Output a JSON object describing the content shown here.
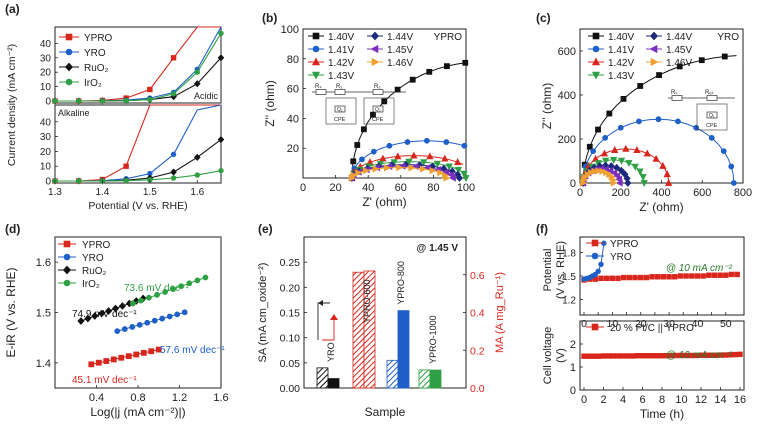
{
  "figure": {
    "panel_labels": [
      "(a)",
      "(b)",
      "(c)",
      "(d)",
      "(e)",
      "(f)"
    ]
  },
  "colors": {
    "red": "#d9261c",
    "blue": "#1f5fc8",
    "black": "#111111",
    "green": "#2ea043",
    "purple": "#7b2fbe",
    "orange": "#f0a030",
    "navy": "#1b2a7a",
    "teal": "#1a9a7a"
  },
  "chart_data": [
    {
      "id": "a_top",
      "type": "line",
      "panel": "(a)",
      "ylabel": "Current density (mA cm⁻²)",
      "annotation": "Acidic",
      "x": [
        1.3,
        1.35,
        1.4,
        1.45,
        1.5,
        1.55,
        1.6,
        1.65
      ],
      "xlim": [
        1.3,
        1.65
      ],
      "ylim": [
        0,
        50
      ],
      "yticks": [
        0,
        10,
        20,
        30,
        40
      ],
      "legend": [
        "YPRO",
        "YRO",
        "RuO₂",
        "IrO₂"
      ],
      "series": [
        {
          "name": "YPRO",
          "color": "red",
          "marker": "square",
          "values": [
            0,
            0,
            0.4,
            2,
            8,
            30,
            50,
            50
          ]
        },
        {
          "name": "YRO",
          "color": "blue",
          "marker": "circle",
          "values": [
            0,
            0,
            0.1,
            0.6,
            2,
            6,
            22,
            50
          ]
        },
        {
          "name": "RuO₂",
          "color": "black",
          "marker": "diamond",
          "values": [
            0,
            0,
            0,
            0.3,
            1,
            3,
            12,
            30
          ]
        },
        {
          "name": "IrO₂",
          "color": "green",
          "marker": "circle",
          "values": [
            0,
            0,
            0,
            0.2,
            1,
            5,
            20,
            47
          ]
        }
      ]
    },
    {
      "id": "a_bottom",
      "type": "line",
      "panel": "(a)",
      "annotation": "Alkaline",
      "x": [
        1.3,
        1.35,
        1.4,
        1.45,
        1.5,
        1.55,
        1.6,
        1.65
      ],
      "xlim": [
        1.3,
        1.65
      ],
      "ylim": [
        0,
        50
      ],
      "yticks": [
        0,
        10,
        20,
        30,
        40
      ],
      "xticks": [
        "1.3",
        "1.4",
        "1.5",
        "1.6"
      ],
      "xlabel": "Potential (V vs. RHE)",
      "series": [
        {
          "name": "YPRO",
          "color": "red",
          "marker": "square",
          "values": [
            0,
            0,
            1,
            10,
            50,
            50,
            50,
            50
          ]
        },
        {
          "name": "YRO",
          "color": "blue",
          "marker": "circle",
          "values": [
            0,
            0,
            0.2,
            1.5,
            5,
            18,
            48,
            50
          ]
        },
        {
          "name": "RuO₂",
          "color": "black",
          "marker": "diamond",
          "values": [
            0,
            0,
            0,
            0.5,
            2,
            6,
            16,
            28
          ]
        },
        {
          "name": "IrO₂",
          "color": "green",
          "marker": "circle",
          "values": [
            0,
            0,
            0,
            0.2,
            0.8,
            2,
            4,
            7
          ]
        }
      ]
    },
    {
      "id": "b",
      "type": "scatter",
      "panel": "(b)",
      "tag": "YPRO",
      "xlabel": "Z' (ohm)",
      "ylabel": "Z'' (ohm)",
      "xlim": [
        0,
        100
      ],
      "ylim": [
        0,
        100
      ],
      "xticks": [
        "0",
        "20",
        "40",
        "60",
        "80",
        "100"
      ],
      "yticks": [
        "20",
        "40",
        "60",
        "80",
        "100"
      ],
      "circuit": {
        "labels": [
          "Rₛ",
          "R₁",
          "R₂",
          "CPE",
          "CPE",
          "Q₁",
          "Q₂"
        ]
      },
      "series": [
        {
          "name": "1.40V",
          "color": "black",
          "marker": "square",
          "arc": [
            30,
            160,
            78
          ]
        },
        {
          "name": "1.41V",
          "color": "blue",
          "marker": "circle",
          "arc": [
            30,
            92,
            25
          ]
        },
        {
          "name": "1.42V",
          "color": "red",
          "marker": "triangle",
          "arc": [
            30,
            76,
            15
          ]
        },
        {
          "name": "1.43V",
          "color": "green",
          "marker": "tri-down",
          "arc": [
            30,
            70,
            11
          ]
        },
        {
          "name": "1.44V",
          "color": "navy",
          "marker": "diamond",
          "arc": [
            30,
            66,
            9
          ]
        },
        {
          "name": "1.45V",
          "color": "purple",
          "marker": "tri-left",
          "arc": [
            30,
            62,
            8
          ]
        },
        {
          "name": "1.46V",
          "color": "orange",
          "marker": "tri-right",
          "arc": [
            30,
            58,
            7
          ]
        }
      ]
    },
    {
      "id": "c",
      "type": "scatter",
      "panel": "(c)",
      "tag": "YRO",
      "xlabel": "Z' (ohm)",
      "ylabel": "Z'' (ohm)",
      "xlim": [
        0,
        800
      ],
      "ylim": [
        0,
        700
      ],
      "xticks": [
        "0",
        "200",
        "400",
        "600",
        "800"
      ],
      "yticks": [
        "0",
        "200",
        "400",
        "600"
      ],
      "circuit": {
        "labels": [
          "Rₛ",
          "Rₑₜ",
          "CPE",
          "Q₁"
        ]
      },
      "series": [
        {
          "name": "1.40V",
          "color": "black",
          "marker": "square",
          "arc": [
            15,
            1600,
            580
          ]
        },
        {
          "name": "1.41V",
          "color": "blue",
          "marker": "circle",
          "arc": [
            15,
            740,
            290
          ]
        },
        {
          "name": "1.42V",
          "color": "red",
          "marker": "triangle",
          "arc": [
            15,
            420,
            155
          ]
        },
        {
          "name": "1.43V",
          "color": "green",
          "marker": "tri-down",
          "arc": [
            15,
            300,
            105
          ]
        },
        {
          "name": "1.44V",
          "color": "navy",
          "marker": "diamond",
          "arc": [
            15,
            220,
            80
          ]
        },
        {
          "name": "1.45V",
          "color": "purple",
          "marker": "tri-left",
          "arc": [
            15,
            180,
            65
          ]
        },
        {
          "name": "1.46V",
          "color": "orange",
          "marker": "tri-right",
          "arc": [
            15,
            150,
            55
          ]
        }
      ]
    },
    {
      "id": "d",
      "type": "line",
      "panel": "(d)",
      "xlabel": "Log(|j (mA cm⁻²)|)",
      "ylabel": "E-iR (V vs. RHE)",
      "xlim": [
        0,
        1.6
      ],
      "ylim": [
        1.35,
        1.65
      ],
      "xticks": [
        "0.4",
        "0.8",
        "1.2",
        "1.6"
      ],
      "yticks": [
        "1.4",
        "1.5",
        "1.6"
      ],
      "series": [
        {
          "name": "YPRO",
          "color": "red",
          "marker": "square",
          "x0": 0.35,
          "x1": 1.0,
          "y0": 1.397,
          "tafel": 0.0451,
          "label": "45.1 mV dec⁻¹"
        },
        {
          "name": "YRO",
          "color": "blue",
          "marker": "circle",
          "x0": 0.6,
          "x1": 1.25,
          "y0": 1.463,
          "tafel": 0.0576,
          "label": "57.6 mV dec⁻¹"
        },
        {
          "name": "RuO₂",
          "color": "black",
          "marker": "diamond",
          "x0": 0.25,
          "x1": 0.85,
          "y0": 1.483,
          "tafel": 0.0749,
          "label": "74.9 mV dec⁻¹"
        },
        {
          "name": "IrO₂",
          "color": "green",
          "marker": "circle",
          "x0": 0.75,
          "x1": 1.45,
          "y0": 1.518,
          "tafel": 0.0736,
          "label": "73.6 mV dec⁻¹"
        }
      ]
    },
    {
      "id": "e",
      "type": "bar",
      "panel": "(e)",
      "annotation": "@ 1.45 V",
      "xlabel": "Sample",
      "ylabel_left": "SA (mA cm_oxide⁻²)",
      "ylabel_right": "MA (A mg_Ru⁻¹)",
      "ylim_left": [
        0,
        0.3
      ],
      "ylim_right": [
        0,
        0.8
      ],
      "yticks_left": [
        "0.00",
        "0.05",
        "0.10",
        "0.15",
        "0.20",
        "0.25"
      ],
      "yticks_right": [
        "0.0",
        "0.2",
        "0.4",
        "0.6"
      ],
      "groups": [
        {
          "name": "YRO",
          "color": "black",
          "sa": 0.04,
          "ma": 0.05
        },
        {
          "name": "YPRO-600",
          "color": "red",
          "sa": 0.23,
          "ma": 0.62
        },
        {
          "name": "YPRO-800",
          "color": "blue",
          "sa": 0.055,
          "ma": 0.41
        },
        {
          "name": "YPRO-1000",
          "color": "green",
          "sa": 0.036,
          "ma": 0.095
        }
      ]
    },
    {
      "id": "f_top",
      "type": "line",
      "panel": "(f)",
      "ylabel": "Potential (V vs. RHE)",
      "annotation": "@ 10 mA cm⁻²",
      "xlim": [
        0,
        55
      ],
      "ylim": [
        1.0,
        2.0
      ],
      "xticks": [
        "0",
        "5",
        "10",
        "15",
        "20",
        "25",
        "30",
        "35",
        "40",
        "45",
        "50"
      ],
      "yticks": [
        "1.2",
        "1.5",
        "1.8"
      ],
      "series": [
        {
          "name": "YPRO",
          "color": "red",
          "marker": "square",
          "x": [
            0,
            2,
            4,
            6,
            8,
            10,
            12,
            14,
            16,
            18,
            20,
            22,
            24,
            26,
            28,
            30,
            32,
            34,
            36,
            38,
            40,
            42,
            44,
            46,
            48,
            50,
            52,
            54
          ],
          "values": [
            1.45,
            1.46,
            1.46,
            1.47,
            1.47,
            1.47,
            1.47,
            1.48,
            1.48,
            1.48,
            1.48,
            1.48,
            1.49,
            1.49,
            1.49,
            1.49,
            1.49,
            1.5,
            1.5,
            1.5,
            1.5,
            1.5,
            1.51,
            1.51,
            1.51,
            1.51,
            1.52,
            1.52
          ]
        },
        {
          "name": "YRO",
          "color": "blue",
          "marker": "circle",
          "x": [
            0,
            1,
            2,
            3,
            4,
            5,
            6,
            7
          ],
          "values": [
            1.46,
            1.47,
            1.48,
            1.5,
            1.52,
            1.56,
            1.65,
            1.92
          ]
        }
      ]
    },
    {
      "id": "f_bottom",
      "type": "line",
      "panel": "(f)",
      "xlabel": "Time (h)",
      "ylabel": "Cell voltage (V)",
      "annotation": "@ 10 mA cm⁻²",
      "legend": [
        "20 % Pt/C || YPRO"
      ],
      "xlim": [
        0,
        16
      ],
      "ylim": [
        0,
        3
      ],
      "xticks": [
        "0",
        "2",
        "4",
        "6",
        "8",
        "10",
        "12",
        "14",
        "16"
      ],
      "yticks": [
        "0",
        "1",
        "2"
      ],
      "series": [
        {
          "name": "20 % Pt/C || YPRO",
          "color": "red",
          "marker": "square",
          "x": [
            0,
            0.5,
            1,
            1.5,
            2,
            2.5,
            3,
            3.5,
            4,
            4.5,
            5,
            5.5,
            6,
            6.5,
            7,
            7.5,
            8,
            8.5,
            9,
            9.5,
            10,
            10.5,
            11,
            11.5,
            12,
            12.5,
            13,
            13.5,
            14,
            14.5,
            15,
            15.5,
            16
          ],
          "values": [
            1.47,
            1.47,
            1.47,
            1.47,
            1.48,
            1.48,
            1.48,
            1.48,
            1.48,
            1.48,
            1.48,
            1.49,
            1.49,
            1.49,
            1.49,
            1.49,
            1.49,
            1.49,
            1.5,
            1.5,
            1.5,
            1.5,
            1.5,
            1.5,
            1.51,
            1.51,
            1.51,
            1.51,
            1.52,
            1.52,
            1.53,
            1.54,
            1.55
          ]
        }
      ]
    }
  ]
}
